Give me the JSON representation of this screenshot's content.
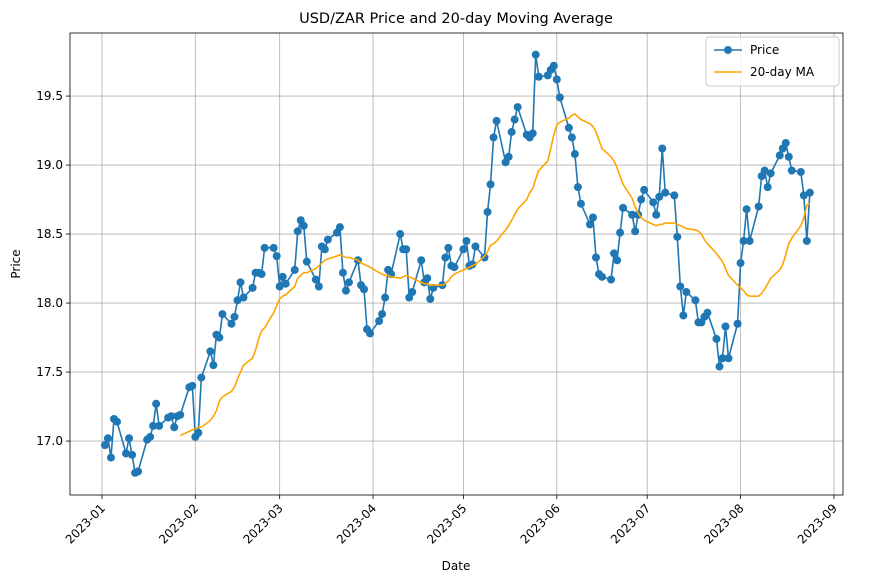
{
  "chart_data": {
    "type": "line",
    "title": "USD/ZAR Price and 20-day Moving Average",
    "xlabel": "Date",
    "ylabel": "Price",
    "x": [
      1,
      2,
      3,
      4,
      5,
      8,
      9,
      10,
      11,
      12,
      15,
      16,
      17,
      18,
      19,
      22,
      23,
      24,
      25,
      26,
      29,
      30,
      31,
      32,
      33,
      36,
      37,
      38,
      39,
      40,
      43,
      44,
      45,
      46,
      47,
      50,
      51,
      52,
      53,
      54,
      57,
      58,
      59,
      60,
      61,
      64,
      65,
      66,
      67,
      68,
      71,
      72,
      73,
      74,
      75,
      78,
      79,
      80,
      81,
      82,
      85,
      86,
      87,
      88,
      89,
      92,
      93,
      94,
      95,
      96,
      99,
      100,
      101,
      102,
      103,
      106,
      107,
      108,
      109,
      110,
      113,
      114,
      115,
      116,
      117,
      120,
      121,
      122,
      123,
      124,
      127,
      128,
      129,
      130,
      131,
      134,
      135,
      136,
      137,
      138,
      141,
      142,
      143,
      144,
      145,
      148,
      149,
      150,
      151,
      152,
      155,
      156,
      157,
      158,
      159,
      162,
      163,
      164,
      165,
      166,
      169,
      170,
      171,
      172,
      173,
      176,
      177,
      178,
      179,
      180,
      183,
      184,
      185,
      186,
      187,
      190,
      191,
      192,
      193,
      194,
      197,
      198,
      199,
      200,
      201,
      204,
      205,
      206,
      207,
      208,
      211,
      212,
      213,
      214,
      215,
      218,
      219,
      220,
      221,
      222,
      225,
      226,
      227,
      228,
      229,
      232,
      233,
      234,
      235
    ],
    "series": [
      {
        "name": "Price",
        "color": "#1f77b4",
        "markers": true,
        "values": [
          16.97,
          17.02,
          16.88,
          17.16,
          17.14,
          16.91,
          17.02,
          16.9,
          16.77,
          16.78,
          17.01,
          17.03,
          17.11,
          17.27,
          17.11,
          17.17,
          17.18,
          17.1,
          17.18,
          17.19,
          17.39,
          17.4,
          17.03,
          17.06,
          17.46,
          17.65,
          17.55,
          17.77,
          17.75,
          17.92,
          17.85,
          17.9,
          18.02,
          18.15,
          18.04,
          18.11,
          18.22,
          18.22,
          18.21,
          18.4,
          18.4,
          18.34,
          18.12,
          18.19,
          18.14,
          18.24,
          18.52,
          18.6,
          18.56,
          18.3,
          18.17,
          18.12,
          18.41,
          18.39,
          18.46,
          18.51,
          18.55,
          18.22,
          18.09,
          18.15,
          18.31,
          18.13,
          18.1,
          17.81,
          17.78,
          17.87,
          17.92,
          18.04,
          18.24,
          18.21,
          18.5,
          18.39,
          18.39,
          18.04,
          18.08,
          18.31,
          18.15,
          18.18,
          18.03,
          18.11,
          18.13,
          18.33,
          18.4,
          18.27,
          18.26,
          18.39,
          18.45,
          18.27,
          18.28,
          18.41,
          18.33,
          18.66,
          18.86,
          19.2,
          19.32,
          19.02,
          19.06,
          19.24,
          19.33,
          19.42,
          19.22,
          19.2,
          19.23,
          19.8,
          19.64,
          19.65,
          19.69,
          19.72,
          19.62,
          19.49,
          19.27,
          19.2,
          19.08,
          18.84,
          18.72,
          18.57,
          18.62,
          18.33,
          18.21,
          18.19,
          18.17,
          18.36,
          18.31,
          18.51,
          18.69,
          18.64,
          18.52,
          18.64,
          18.75,
          18.82,
          18.73,
          18.64,
          18.77,
          19.12,
          18.8,
          18.78,
          18.48,
          18.12,
          17.91,
          18.08,
          18.02,
          17.86,
          17.86,
          17.9,
          17.93,
          17.74,
          17.54,
          17.6,
          17.83,
          17.6,
          17.85,
          18.29,
          18.45,
          18.68,
          18.45,
          18.7,
          18.92,
          18.96,
          18.84,
          18.94,
          19.07,
          19.12,
          19.16,
          19.06,
          18.96,
          18.95,
          18.78,
          18.45,
          18.8
        ]
      },
      {
        "name": "20-day MA",
        "color": "#ffa500",
        "markers": false,
        "values": [
          null,
          null,
          null,
          null,
          null,
          null,
          null,
          null,
          null,
          null,
          null,
          null,
          null,
          null,
          null,
          null,
          null,
          null,
          null,
          17.04,
          17.07,
          17.08,
          17.09,
          17.1,
          17.1,
          17.15,
          17.18,
          17.22,
          17.29,
          17.32,
          17.36,
          17.39,
          17.45,
          17.5,
          17.55,
          17.6,
          17.66,
          17.74,
          17.8,
          17.82,
          17.93,
          17.98,
          18.03,
          18.05,
          18.06,
          18.12,
          18.18,
          18.2,
          18.22,
          18.22,
          18.25,
          18.27,
          18.29,
          18.31,
          18.32,
          18.34,
          18.35,
          18.34,
          18.33,
          18.33,
          18.31,
          18.29,
          18.28,
          18.27,
          18.26,
          18.22,
          18.21,
          18.2,
          18.2,
          18.19,
          18.18,
          18.19,
          18.2,
          18.19,
          18.18,
          18.15,
          18.14,
          18.14,
          18.13,
          18.13,
          18.13,
          18.14,
          18.16,
          18.19,
          18.21,
          18.24,
          18.25,
          18.26,
          18.27,
          18.28,
          18.34,
          18.37,
          18.42,
          18.43,
          18.45,
          18.53,
          18.56,
          18.6,
          18.64,
          18.68,
          18.75,
          18.8,
          18.83,
          18.9,
          18.96,
          19.03,
          19.12,
          19.22,
          19.29,
          19.31,
          19.34,
          19.36,
          19.37,
          19.35,
          19.33,
          19.3,
          19.28,
          19.24,
          19.18,
          19.12,
          19.06,
          19.03,
          18.98,
          18.92,
          18.86,
          18.76,
          18.7,
          18.65,
          18.62,
          18.6,
          18.57,
          18.56,
          18.57,
          18.57,
          18.58,
          18.58,
          18.57,
          18.56,
          18.55,
          18.54,
          18.53,
          18.52,
          18.5,
          18.46,
          18.43,
          18.36,
          18.33,
          18.3,
          18.25,
          18.2,
          18.13,
          18.11,
          18.09,
          18.06,
          18.05,
          18.05,
          18.07,
          18.1,
          18.14,
          18.18,
          18.24,
          18.28,
          18.35,
          18.43,
          18.47,
          18.56,
          18.62,
          18.71,
          18.72
        ]
      }
    ],
    "xlim": [
      -10.6,
      246
    ],
    "xticks": [
      {
        "value": 0,
        "label": "2023-01"
      },
      {
        "value": 31,
        "label": "2023-02"
      },
      {
        "value": 59,
        "label": "2023-03"
      },
      {
        "value": 90,
        "label": "2023-04"
      },
      {
        "value": 120,
        "label": "2023-05"
      },
      {
        "value": 151,
        "label": "2023-06"
      },
      {
        "value": 181,
        "label": "2023-07"
      },
      {
        "value": 212,
        "label": "2023-08"
      },
      {
        "value": 243,
        "label": "2023-09"
      }
    ],
    "ylim": [
      16.609,
      19.957
    ],
    "yticks": [
      {
        "value": 17,
        "label": "17.0"
      },
      17.5,
      {
        "value": 18,
        "label": "18.0"
      },
      18.5,
      {
        "value": 19,
        "label": "19.0"
      },
      19.5
    ],
    "grid": true,
    "legend": "upper right"
  }
}
